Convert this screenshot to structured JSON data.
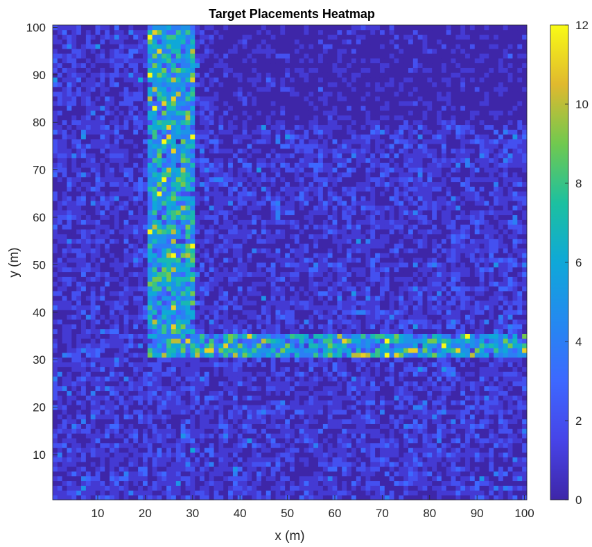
{
  "chart_data": {
    "type": "heatmap",
    "title": "Target Placements Heatmap",
    "xlabel": "x (m)",
    "ylabel": "y (m)",
    "xlim": [
      1,
      100
    ],
    "ylim": [
      1,
      100
    ],
    "grid_size": [
      100,
      100
    ],
    "x_ticks": [
      "10",
      "20",
      "30",
      "40",
      "50",
      "60",
      "70",
      "80",
      "90",
      "100"
    ],
    "y_ticks": [
      "10",
      "20",
      "30",
      "40",
      "50",
      "60",
      "70",
      "80",
      "90",
      "100"
    ],
    "colorbar": {
      "range": [
        0,
        12
      ],
      "ticks": [
        "0",
        "2",
        "4",
        "6",
        "8",
        "10",
        "12"
      ],
      "colormap": "parula"
    },
    "background": {
      "typical_count": 1,
      "upper_right_region": {
        "x_min": 35,
        "y_min": 80,
        "typical_count": 0.3
      }
    },
    "bands": [
      {
        "orientation": "vertical",
        "x_range": [
          21,
          30
        ],
        "y_range": [
          31,
          100
        ],
        "typical_count": 5.5
      },
      {
        "orientation": "horizontal",
        "x_range": [
          21,
          100
        ],
        "y_range": [
          31,
          35
        ],
        "typical_count": 5.5
      }
    ],
    "peak_value": 12
  }
}
